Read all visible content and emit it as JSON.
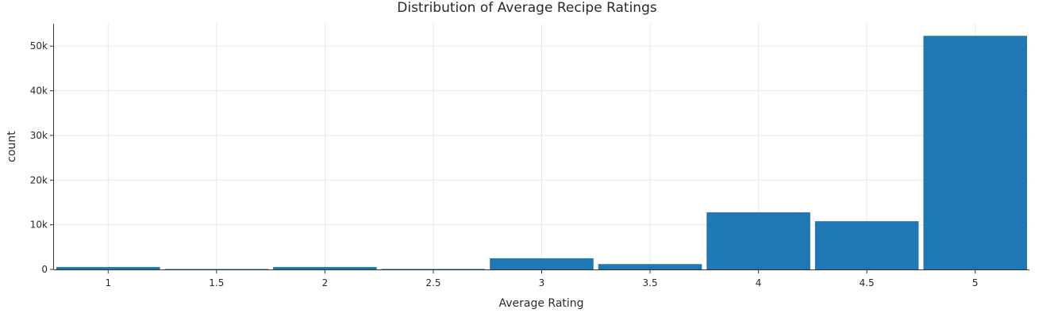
{
  "chart_data": {
    "type": "bar",
    "title": "Distribution of Average Recipe Ratings",
    "xlabel": "Average Rating",
    "ylabel": "count",
    "x": [
      1,
      1.5,
      2,
      2.5,
      3,
      3.5,
      4,
      4.5,
      5
    ],
    "values": [
      550,
      30,
      550,
      120,
      2500,
      1200,
      12800,
      10800,
      52300
    ],
    "xlim": [
      0.75,
      5.25
    ],
    "ylim": [
      0,
      55000
    ],
    "xticks": [
      1,
      1.5,
      2,
      2.5,
      3,
      3.5,
      4,
      4.5,
      5
    ],
    "xtick_labels": [
      "1",
      "1.5",
      "2",
      "2.5",
      "3",
      "3.5",
      "4",
      "4.5",
      "5"
    ],
    "yticks": [
      0,
      10000,
      20000,
      30000,
      40000,
      50000
    ],
    "ytick_labels": [
      "0",
      "10k",
      "20k",
      "30k",
      "40k",
      "50k"
    ],
    "grid": true,
    "bar_color": "#1f77b4"
  }
}
